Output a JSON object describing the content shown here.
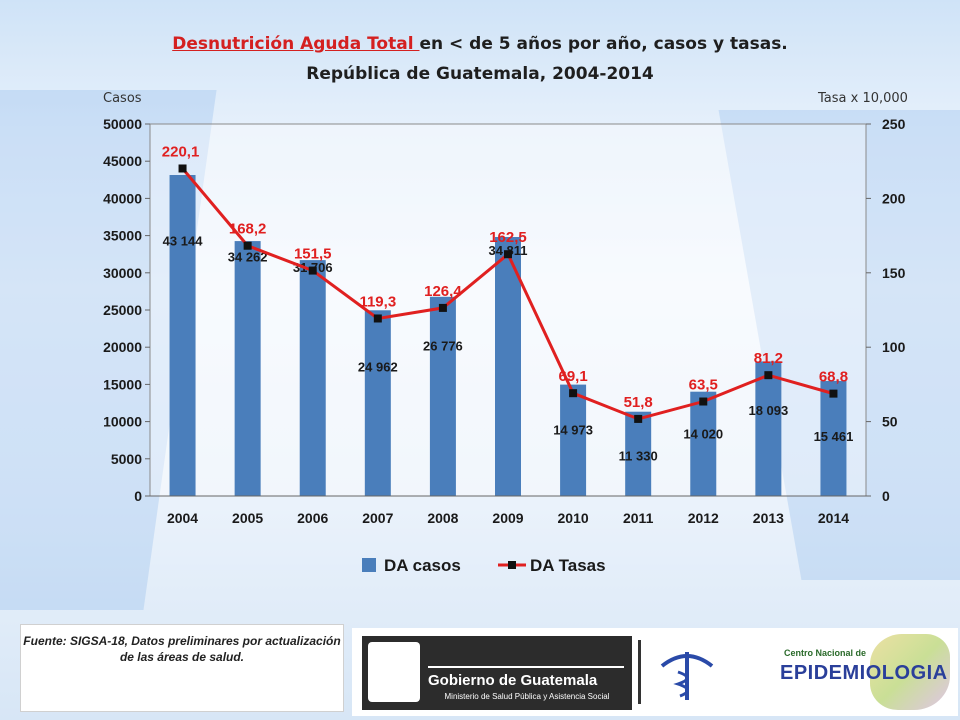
{
  "title_highlight": "Desnutrición Aguda Total ",
  "title_rest": "en < de 5 años por año, casos y tasas.",
  "title_line2": "República de Guatemala,  2004-2014",
  "left_axis_title": "Casos",
  "right_axis_title": "Tasa x 10,000",
  "source_text": "Fuente: SIGSA-18, Datos preliminares por actualización de las áreas de salud.",
  "logos": {
    "gobierno_name": "Gobierno de Guatemala",
    "gobierno_sub": "Ministerio de Salud Pública y Asistencia Social",
    "centro_name": "Centro Nacional de",
    "epidemiologia": "EPIDEMIOLOGIA"
  },
  "chart_data": {
    "type": "bar",
    "categories": [
      "2004",
      "2005",
      "2006",
      "2007",
      "2008",
      "2009",
      "2010",
      "2011",
      "2012",
      "2013",
      "2014"
    ],
    "series": [
      {
        "name": "DA casos",
        "kind": "bar",
        "axis": "left",
        "color": "#4a7ebb",
        "values": [
          43144,
          34262,
          31706,
          24962,
          26776,
          34811,
          14973,
          11330,
          14020,
          18093,
          15461
        ],
        "labels": [
          "43 144",
          "34 262",
          "31 706",
          "24 962",
          "26 776",
          "34 811",
          "14 973",
          "11 330",
          "14 020",
          "18 093",
          "15 461"
        ]
      },
      {
        "name": "DA Tasas",
        "kind": "line",
        "axis": "right",
        "color": "#e02020",
        "marker_color": "#111111",
        "values": [
          220.1,
          168.2,
          151.5,
          119.3,
          126.4,
          162.5,
          69.1,
          51.8,
          63.5,
          81.2,
          68.8
        ],
        "labels": [
          "220,1",
          "168,2",
          "151,5",
          "119,3",
          "126,4",
          "162,5",
          "69,1",
          "51,8",
          "63,5",
          "81,2",
          "68,8"
        ]
      }
    ],
    "ylim_left": [
      0,
      50000
    ],
    "yticks_left": [
      "0",
      "5000",
      "10000",
      "15000",
      "20000",
      "25000",
      "30000",
      "35000",
      "40000",
      "45000",
      "50000"
    ],
    "ylim_right": [
      0,
      250
    ],
    "yticks_right": [
      "0",
      "50",
      "100",
      "150",
      "200",
      "250"
    ],
    "grid": false,
    "legend_position": "bottom"
  }
}
